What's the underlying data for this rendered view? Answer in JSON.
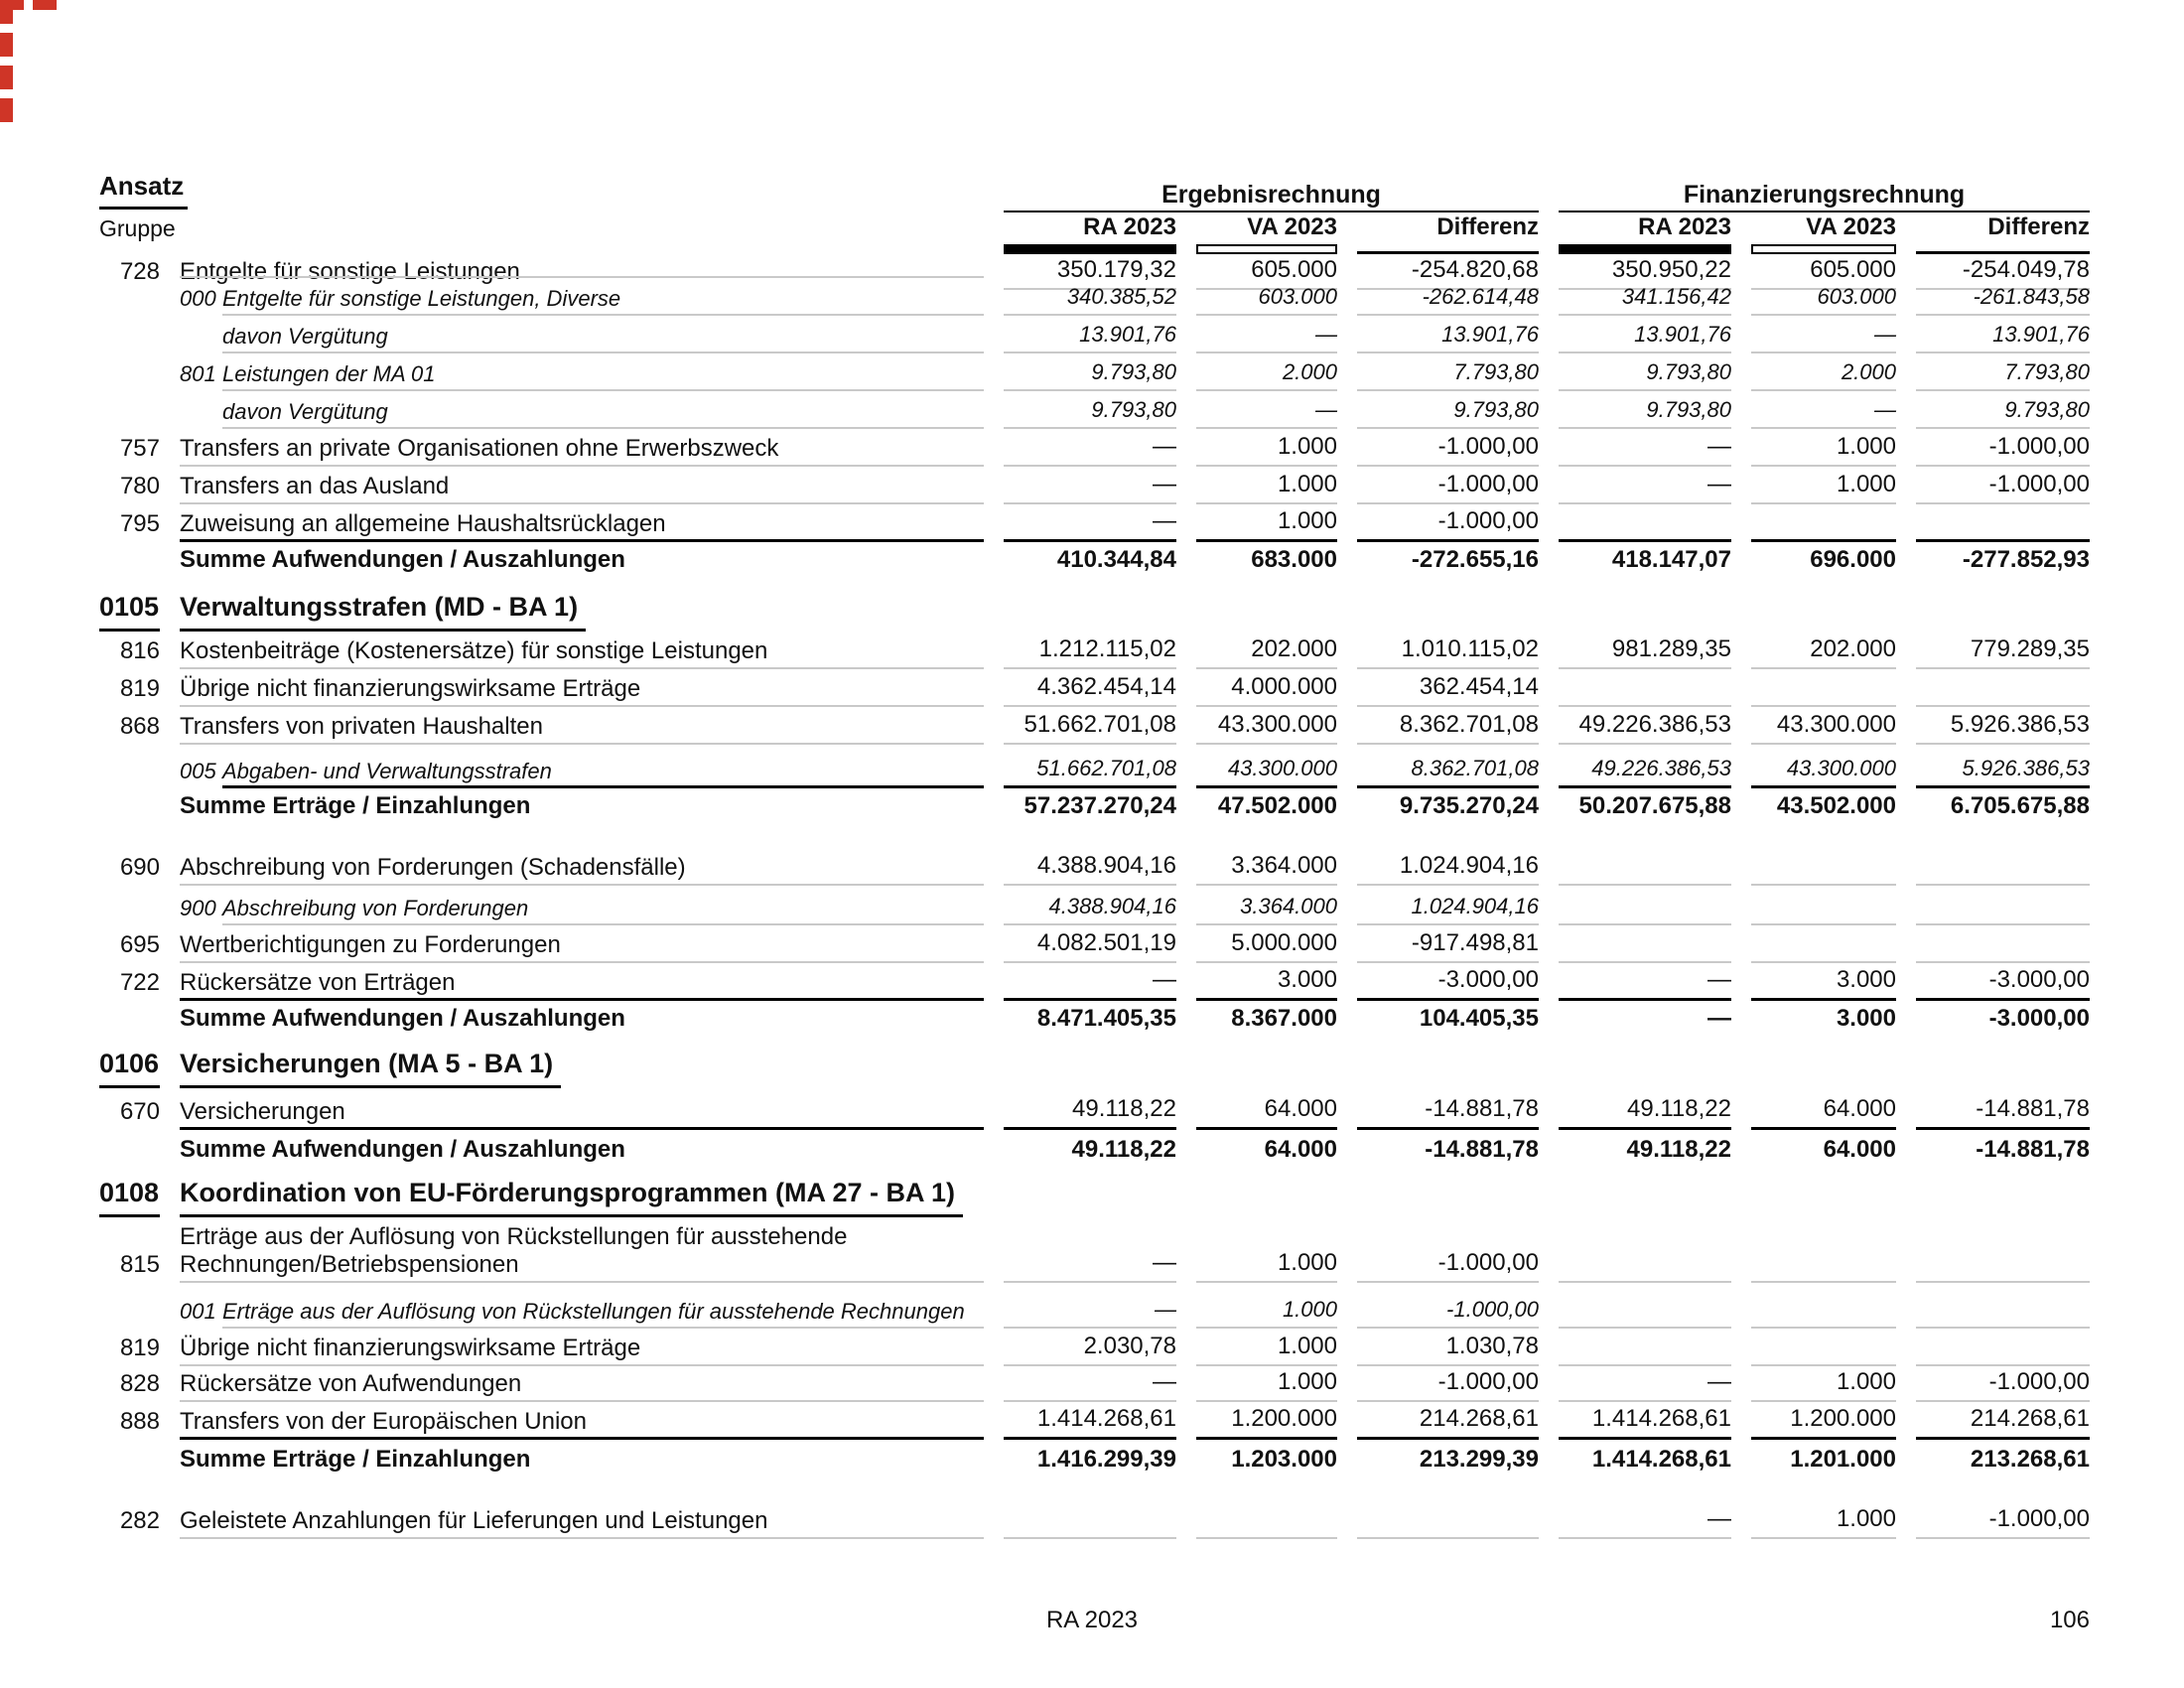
{
  "page": {
    "header": {
      "ansatz_label": "Ansatz",
      "gruppe_label": "Gruppe",
      "group1_title": "Ergebnisrechnung",
      "group2_title": "Finanzierungsrechnung",
      "col_labels": [
        "RA 2023",
        "VA 2023",
        "Differenz"
      ]
    },
    "footer": {
      "center": "RA 2023",
      "page_number": "106"
    },
    "colors": {
      "text": "#111111",
      "rule_light": "#c9c9c9",
      "rule_dark": "#000000",
      "edge_mark_red": "#cf3527"
    }
  },
  "table": {
    "rows": [
      {
        "type": "item",
        "num": "728",
        "label": "Entgelte für sonstige Leistungen",
        "line": "light",
        "values": [
          "350.179,32",
          "605.000",
          "-254.820,68",
          "350.950,22",
          "605.000",
          "-254.049,78"
        ]
      },
      {
        "type": "sub",
        "num": "000",
        "label": "Entgelte für sonstige Leistungen, Diverse",
        "line": "light",
        "values": [
          "340.385,52",
          "603.000",
          "-262.614,48",
          "341.156,42",
          "603.000",
          "-261.843,58"
        ]
      },
      {
        "type": "davon",
        "label": "davon Vergütung",
        "line": "light",
        "values": [
          "13.901,76",
          "—",
          "13.901,76",
          "13.901,76",
          "—",
          "13.901,76"
        ]
      },
      {
        "type": "sub",
        "num": "801",
        "label": "Leistungen der MA 01",
        "line": "light",
        "values": [
          "9.793,80",
          "2.000",
          "7.793,80",
          "9.793,80",
          "2.000",
          "7.793,80"
        ]
      },
      {
        "type": "davon",
        "label": "davon Vergütung",
        "line": "light",
        "values": [
          "9.793,80",
          "—",
          "9.793,80",
          "9.793,80",
          "—",
          "9.793,80"
        ]
      },
      {
        "type": "item",
        "num": "757",
        "label": "Transfers an private Organisationen ohne Erwerbszweck",
        "line": "light",
        "values": [
          "—",
          "1.000",
          "-1.000,00",
          "—",
          "1.000",
          "-1.000,00"
        ]
      },
      {
        "type": "item",
        "num": "780",
        "label": "Transfers an das Ausland",
        "line": "light",
        "values": [
          "—",
          "1.000",
          "-1.000,00",
          "—",
          "1.000",
          "-1.000,00"
        ]
      },
      {
        "type": "item",
        "num": "795",
        "label": "Zuweisung an allgemeine Haushaltsrücklagen",
        "line": "thick",
        "values": [
          "—",
          "1.000",
          "-1.000,00",
          "",
          "",
          ""
        ]
      },
      {
        "type": "sum",
        "label": "Summe Aufwendungen / Auszahlungen",
        "line": "none",
        "values": [
          "410.344,84",
          "683.000",
          "-272.655,16",
          "418.147,07",
          "696.000",
          "-277.852,93"
        ]
      },
      {
        "type": "section",
        "num": "0105",
        "label": "Verwaltungsstrafen (MD - BA 1)",
        "line": "none"
      },
      {
        "type": "item",
        "num": "816",
        "label": "Kostenbeiträge (Kostenersätze) für sonstige Leistungen",
        "line": "light",
        "values": [
          "1.212.115,02",
          "202.000",
          "1.010.115,02",
          "981.289,35",
          "202.000",
          "779.289,35"
        ]
      },
      {
        "type": "item",
        "num": "819",
        "label": "Übrige nicht finanzierungswirksame Erträge",
        "line": "light",
        "values": [
          "4.362.454,14",
          "4.000.000",
          "362.454,14",
          "",
          "",
          ""
        ]
      },
      {
        "type": "item",
        "num": "868",
        "label": "Transfers von privaten Haushalten",
        "line": "light",
        "values": [
          "51.662.701,08",
          "43.300.000",
          "8.362.701,08",
          "49.226.386,53",
          "43.300.000",
          "5.926.386,53"
        ]
      },
      {
        "type": "sub",
        "num": "005",
        "label": "Abgaben- und Verwaltungsstrafen",
        "line": "thick",
        "values": [
          "51.662.701,08",
          "43.300.000",
          "8.362.701,08",
          "49.226.386,53",
          "43.300.000",
          "5.926.386,53"
        ]
      },
      {
        "type": "sum",
        "label": "Summe Erträge / Einzahlungen",
        "line": "none",
        "values": [
          "57.237.270,24",
          "47.502.000",
          "9.735.270,24",
          "50.207.675,88",
          "43.502.000",
          "6.705.675,88"
        ]
      },
      {
        "type": "item",
        "num": "690",
        "label": "Abschreibung von Forderungen (Schadensfälle)",
        "line": "light",
        "values": [
          "4.388.904,16",
          "3.364.000",
          "1.024.904,16",
          "",
          "",
          ""
        ]
      },
      {
        "type": "sub",
        "num": "900",
        "label": "Abschreibung von Forderungen",
        "line": "light",
        "values": [
          "4.388.904,16",
          "3.364.000",
          "1.024.904,16",
          "",
          "",
          ""
        ]
      },
      {
        "type": "item",
        "num": "695",
        "label": "Wertberichtigungen zu Forderungen",
        "line": "light",
        "values": [
          "4.082.501,19",
          "5.000.000",
          "-917.498,81",
          "",
          "",
          ""
        ]
      },
      {
        "type": "item",
        "num": "722",
        "label": "Rückersätze von Erträgen",
        "line": "thick",
        "values": [
          "—",
          "3.000",
          "-3.000,00",
          "—",
          "3.000",
          "-3.000,00"
        ]
      },
      {
        "type": "sum",
        "label": "Summe Aufwendungen / Auszahlungen",
        "line": "none",
        "values": [
          "8.471.405,35",
          "8.367.000",
          "104.405,35",
          "—",
          "3.000",
          "-3.000,00"
        ]
      },
      {
        "type": "section",
        "num": "0106",
        "label": "Versicherungen (MA 5 - BA 1)",
        "line": "none"
      },
      {
        "type": "item",
        "num": "670",
        "label": "Versicherungen",
        "line": "thick",
        "values": [
          "49.118,22",
          "64.000",
          "-14.881,78",
          "49.118,22",
          "64.000",
          "-14.881,78"
        ]
      },
      {
        "type": "sum",
        "label": "Summe Aufwendungen / Auszahlungen",
        "line": "none",
        "values": [
          "49.118,22",
          "64.000",
          "-14.881,78",
          "49.118,22",
          "64.000",
          "-14.881,78"
        ]
      },
      {
        "type": "section",
        "num": "0108",
        "label": "Koordination von EU-Förderungsprogrammen (MA 27 - BA 1)",
        "line": "none"
      },
      {
        "type": "item",
        "num": "815",
        "label": "Erträge aus der Auflösung von Rückstellungen für ausstehende",
        "label2": "Rechnungen/Betriebspensionen",
        "line": "light",
        "values": [
          "—",
          "1.000",
          "-1.000,00",
          "",
          "",
          ""
        ]
      },
      {
        "type": "sub",
        "num": "001",
        "label": "Erträge aus der Auflösung von Rückstellungen für ausstehende Rechnungen",
        "line": "light",
        "values": [
          "—",
          "1.000",
          "-1.000,00",
          "",
          "",
          ""
        ]
      },
      {
        "type": "item",
        "num": "819",
        "label": "Übrige nicht finanzierungswirksame Erträge",
        "line": "light",
        "values": [
          "2.030,78",
          "1.000",
          "1.030,78",
          "",
          "",
          ""
        ]
      },
      {
        "type": "item",
        "num": "828",
        "label": "Rückersätze von Aufwendungen",
        "line": "light",
        "values": [
          "—",
          "1.000",
          "-1.000,00",
          "—",
          "1.000",
          "-1.000,00"
        ]
      },
      {
        "type": "item",
        "num": "888",
        "label": "Transfers von der Europäischen Union",
        "line": "thick",
        "values": [
          "1.414.268,61",
          "1.200.000",
          "214.268,61",
          "1.414.268,61",
          "1.200.000",
          "214.268,61"
        ]
      },
      {
        "type": "sum",
        "label": "Summe Erträge / Einzahlungen",
        "line": "none",
        "values": [
          "1.416.299,39",
          "1.203.000",
          "213.299,39",
          "1.414.268,61",
          "1.201.000",
          "213.268,61"
        ]
      },
      {
        "type": "item",
        "num": "282",
        "label": "Geleistete Anzahlungen für Lieferungen und Leistungen",
        "line": "light",
        "values": [
          "",
          "",
          "",
          "—",
          "1.000",
          "-1.000,00"
        ]
      }
    ]
  }
}
